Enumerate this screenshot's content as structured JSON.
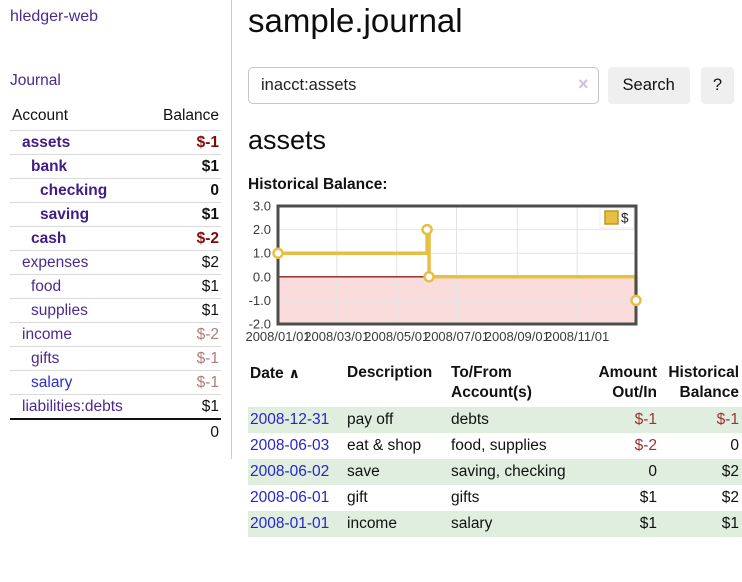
{
  "app": {
    "brand": "hledger-web"
  },
  "sidebar": {
    "journal_link": "Journal",
    "accounts_table": {
      "headers": {
        "account": "Account",
        "balance": "Balance"
      },
      "rows": [
        {
          "account": "assets",
          "balance": "$-1",
          "depth": 1,
          "bold": true,
          "negative": true,
          "blue": false
        },
        {
          "account": "bank",
          "balance": "$1",
          "depth": 2,
          "bold": true,
          "negative": false,
          "blue": false
        },
        {
          "account": "checking",
          "balance": "0",
          "depth": 3,
          "bold": true,
          "negative": false,
          "blue": false
        },
        {
          "account": "saving",
          "balance": "$1",
          "depth": 3,
          "bold": true,
          "negative": false,
          "blue": false
        },
        {
          "account": "cash",
          "balance": "$-2",
          "depth": 2,
          "bold": true,
          "negative": true,
          "blue": false
        },
        {
          "account": "expenses",
          "balance": "$2",
          "depth": 1,
          "bold": false,
          "negative": false,
          "blue": false
        },
        {
          "account": "food",
          "balance": "$1",
          "depth": 2,
          "bold": false,
          "negative": false,
          "blue": false
        },
        {
          "account": "supplies",
          "balance": "$1",
          "depth": 2,
          "bold": false,
          "negative": false,
          "blue": false
        },
        {
          "account": "income",
          "balance": "$-2",
          "depth": 1,
          "bold": false,
          "negative": true,
          "blue": false
        },
        {
          "account": "gifts",
          "balance": "$-1",
          "depth": 2,
          "bold": false,
          "negative": true,
          "blue": false
        },
        {
          "account": "salary",
          "balance": "$-1",
          "depth": 2,
          "bold": false,
          "negative": true,
          "blue": true
        },
        {
          "account": "liabilities:debts",
          "balance": "$1",
          "depth": 1,
          "bold": false,
          "negative": false,
          "blue": false
        }
      ],
      "total": "0"
    }
  },
  "header": {
    "title": "sample.journal"
  },
  "search": {
    "value": "inacct:assets",
    "clear_icon": "×",
    "search_button": "Search",
    "help_button": "?"
  },
  "account_page": {
    "heading": "assets",
    "chart_label": "Historical Balance:"
  },
  "chart_data": {
    "type": "line",
    "title": "Historical Balance:",
    "step": true,
    "series": [
      {
        "name": "$",
        "points": [
          [
            "2008-01-01",
            1
          ],
          [
            "2008-06-01",
            2
          ],
          [
            "2008-06-03",
            0
          ],
          [
            "2008-12-31",
            -1
          ]
        ],
        "color": "#e8bf45"
      }
    ],
    "xlim": [
      "2008-01-01",
      "2008-12-31"
    ],
    "ylim": [
      -2,
      3
    ],
    "x_ticks": [
      "2008/01/01",
      "2008/03/01",
      "2008/05/01",
      "2008/07/01",
      "2008/09/01",
      "2008/11/01"
    ],
    "y_ticks": [
      3.0,
      2.0,
      1.0,
      0.0,
      -1.0,
      -2.0
    ],
    "grid": true,
    "legend": {
      "label": "$",
      "position": "top-right"
    },
    "negative_region_color": "#fbdcdc",
    "zero_line_color": "#8f1d1d",
    "border_color": "#4d4d4d",
    "grid_color": "#e4e4e4"
  },
  "register_table": {
    "headers": {
      "date": "Date",
      "description": "Description",
      "accounts": "To/From Account(s)",
      "amount": "Amount Out/In",
      "balance": "Historical Balance"
    },
    "sort_indicator": "∧",
    "rows": [
      {
        "date": "2008-12-31",
        "description": "pay off",
        "accounts": "debts",
        "amount": "$-1",
        "balance": "$-1",
        "amount_neg": true,
        "balance_neg": true
      },
      {
        "date": "2008-06-03",
        "description": "eat & shop",
        "accounts": "food, supplies",
        "amount": "$-2",
        "balance": "0",
        "amount_neg": true,
        "balance_neg": false
      },
      {
        "date": "2008-06-02",
        "description": "save",
        "accounts": "saving, checking",
        "amount": "0",
        "balance": "$2",
        "amount_neg": false,
        "balance_neg": false
      },
      {
        "date": "2008-06-01",
        "description": "gift",
        "accounts": "gifts",
        "amount": "$1",
        "balance": "$2",
        "amount_neg": false,
        "balance_neg": false
      },
      {
        "date": "2008-01-01",
        "description": "income",
        "accounts": "salary",
        "amount": "$1",
        "balance": "$1",
        "amount_neg": false,
        "balance_neg": false
      }
    ]
  },
  "colors": {
    "accent_purple": "#4b2a8e",
    "bold_account_purple": "#3e1d85",
    "link_blue": "#2626cc",
    "negative_bold_red": "#7c0b0b",
    "negative_muted_rose": "#b07c7c",
    "negative_table_red": "#a03232",
    "row_stripe_green": "#dfeedf",
    "chart_gold": "#e8bf45",
    "chart_region_pink": "#fbdcdc"
  }
}
